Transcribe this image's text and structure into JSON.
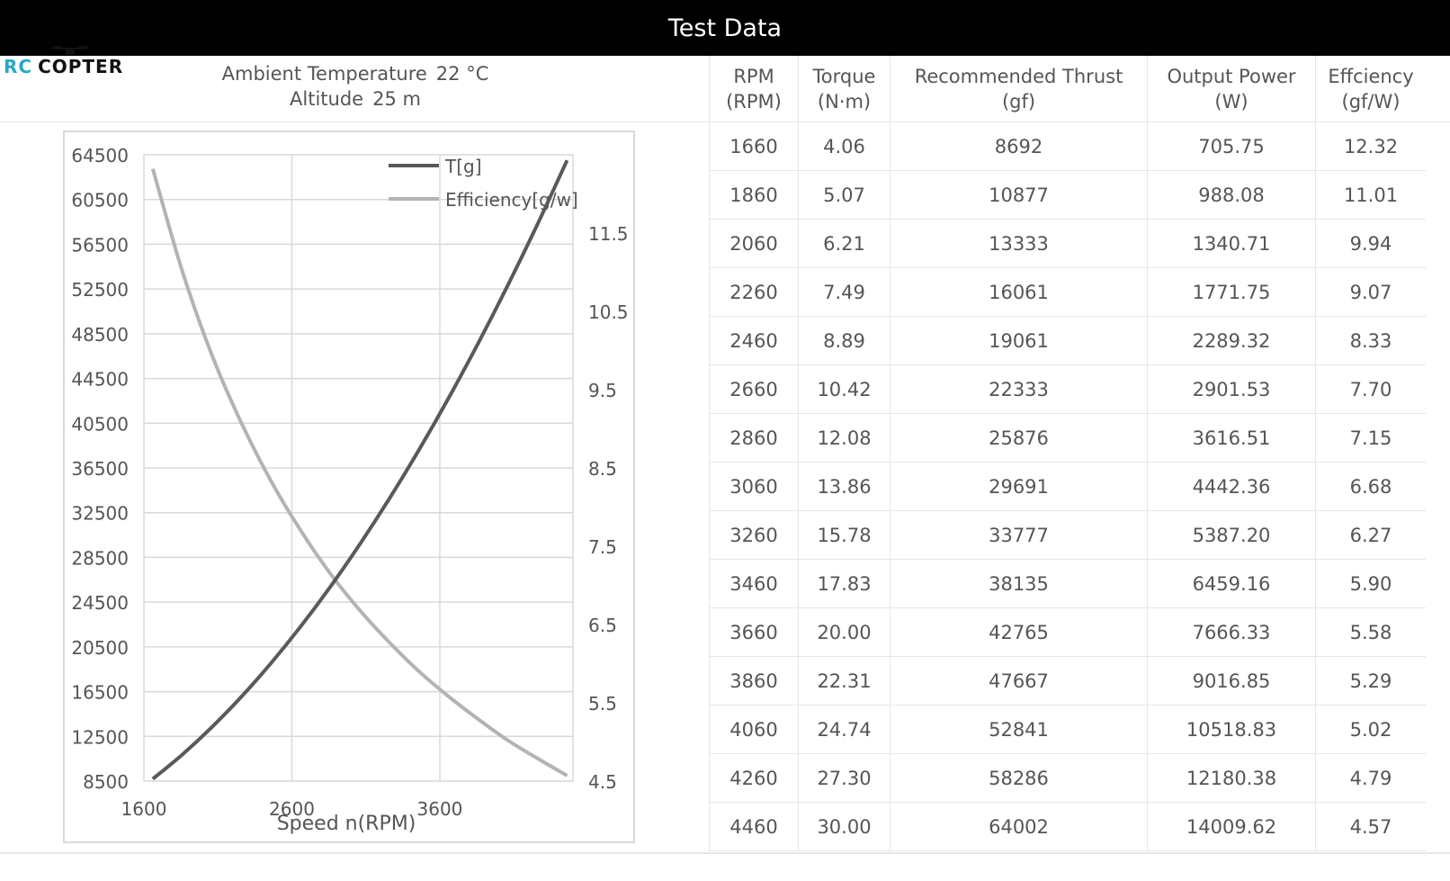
{
  "header": {
    "title": "Test Data"
  },
  "logo": {
    "rc": "RC",
    "copter": "COPTER"
  },
  "conditions": {
    "ambient_label": "Ambient Temperature",
    "ambient_value": "22 °C",
    "altitude_label": "Altitude",
    "altitude_value": "25 m"
  },
  "table": {
    "columns": [
      {
        "name": "RPM",
        "unit": "(RPM)"
      },
      {
        "name": "Torque",
        "unit": "(N·m)"
      },
      {
        "name": "Recommended Thrust",
        "unit": "(gf)"
      },
      {
        "name": "Output Power",
        "unit": "(W)"
      },
      {
        "name": "Effciency",
        "unit": "(gf/W)"
      }
    ],
    "rows": [
      [
        "1660",
        "4.06",
        "8692",
        "705.75",
        "12.32"
      ],
      [
        "1860",
        "5.07",
        "10877",
        "988.08",
        "11.01"
      ],
      [
        "2060",
        "6.21",
        "13333",
        "1340.71",
        "9.94"
      ],
      [
        "2260",
        "7.49",
        "16061",
        "1771.75",
        "9.07"
      ],
      [
        "2460",
        "8.89",
        "19061",
        "2289.32",
        "8.33"
      ],
      [
        "2660",
        "10.42",
        "22333",
        "2901.53",
        "7.70"
      ],
      [
        "2860",
        "12.08",
        "25876",
        "3616.51",
        "7.15"
      ],
      [
        "3060",
        "13.86",
        "29691",
        "4442.36",
        "6.68"
      ],
      [
        "3260",
        "15.78",
        "33777",
        "5387.20",
        "6.27"
      ],
      [
        "3460",
        "17.83",
        "38135",
        "6459.16",
        "5.90"
      ],
      [
        "3660",
        "20.00",
        "42765",
        "7666.33",
        "5.58"
      ],
      [
        "3860",
        "22.31",
        "47667",
        "9016.85",
        "5.29"
      ],
      [
        "4060",
        "24.74",
        "52841",
        "10518.83",
        "5.02"
      ],
      [
        "4260",
        "27.30",
        "58286",
        "12180.38",
        "4.79"
      ],
      [
        "4460",
        "30.00",
        "64002",
        "14009.62",
        "4.57"
      ]
    ]
  },
  "colors": {
    "thrust": "#595959",
    "efficiency": "#b3b3b3",
    "grid": "#d9d9d9",
    "text": "#555555"
  },
  "chart_data": {
    "type": "line",
    "xlabel": "Speed n(RPM)",
    "ylabel": "",
    "y2label": "",
    "x_ticks": [
      "1600",
      "2600",
      "3600"
    ],
    "xlim": [
      1600,
      4500
    ],
    "ylim": [
      8500,
      64500
    ],
    "y_ticks": [
      "8500",
      "12500",
      "16500",
      "20500",
      "24500",
      "28500",
      "32500",
      "36500",
      "40500",
      "44500",
      "48500",
      "52500",
      "56500",
      "60500",
      "64500"
    ],
    "y2lim": [
      4.5,
      12.5
    ],
    "y2_ticks": [
      "4.5",
      "5.5",
      "6.5",
      "7.5",
      "8.5",
      "9.5",
      "10.5",
      "11.5"
    ],
    "legend_position": "top-right",
    "grid": true,
    "x": [
      1660,
      1860,
      2060,
      2260,
      2460,
      2660,
      2860,
      3060,
      3260,
      3460,
      3660,
      3860,
      4060,
      4260,
      4460
    ],
    "series": [
      {
        "name": "T[g]",
        "axis": "left",
        "values": [
          8692,
          10877,
          13333,
          16061,
          19061,
          22333,
          25876,
          29691,
          33777,
          38135,
          42765,
          47667,
          52841,
          58286,
          64002
        ]
      },
      {
        "name": "Efficiency[g/w]",
        "axis": "right",
        "values": [
          12.32,
          11.01,
          9.94,
          9.07,
          8.33,
          7.7,
          7.15,
          6.68,
          6.27,
          5.9,
          5.58,
          5.29,
          5.02,
          4.79,
          4.57
        ]
      }
    ]
  }
}
